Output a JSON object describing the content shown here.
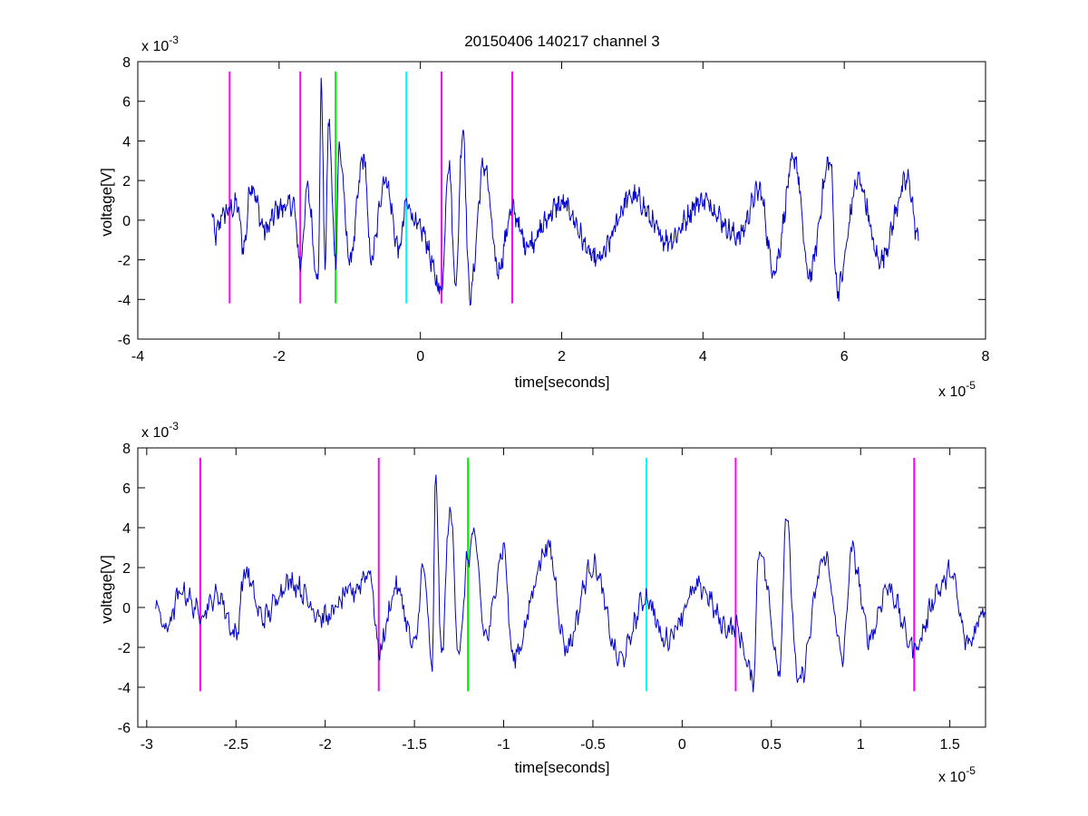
{
  "figure_title": "20150406 140217 channel 3",
  "colors": {
    "signal": "#0000cc",
    "magenta": "#ff00ff",
    "green": "#00ee00",
    "cyan": "#00ffff",
    "axes": "#000000",
    "background": "#ffffff"
  },
  "chart_data": [
    {
      "type": "line",
      "title": "20150406 140217 channel 3",
      "xlabel": "time[seconds]",
      "ylabel": "voltage[V]",
      "x_exponent_label": "x 10",
      "x_exponent": "-5",
      "y_exponent_label": "x 10",
      "y_exponent": "-3",
      "xlim": [
        -4,
        8
      ],
      "ylim": [
        -6,
        8
      ],
      "xticks": [
        -4,
        -2,
        0,
        2,
        4,
        6,
        8
      ],
      "xtick_labels": [
        "-4",
        "-2",
        "0",
        "2",
        "4",
        "6",
        "8"
      ],
      "yticks": [
        -6,
        -4,
        -2,
        0,
        2,
        4,
        6,
        8
      ],
      "ytick_labels": [
        "-6",
        "-4",
        "-2",
        "0",
        "2",
        "4",
        "6",
        "8"
      ],
      "grid": false,
      "signal_x_range": [
        -2.95,
        7.05
      ],
      "waveform_anchors": [
        [
          -2.95,
          0.2
        ],
        [
          -2.9,
          -0.8
        ],
        [
          -2.8,
          0.3
        ],
        [
          -2.7,
          0.5
        ],
        [
          -2.6,
          0.8
        ],
        [
          -2.5,
          -1.4
        ],
        [
          -2.4,
          1.8
        ],
        [
          -2.2,
          -0.5
        ],
        [
          -2.0,
          0.6
        ],
        [
          -1.8,
          0.8
        ],
        [
          -1.7,
          -2.2
        ],
        [
          -1.6,
          1.5
        ],
        [
          -1.45,
          -3.0
        ],
        [
          -1.4,
          6.8
        ],
        [
          -1.35,
          -2.5
        ],
        [
          -1.3,
          4.9
        ],
        [
          -1.2,
          -2.0
        ],
        [
          -1.15,
          3.6
        ],
        [
          -1.0,
          -2.0
        ],
        [
          -0.8,
          3.2
        ],
        [
          -0.7,
          -2.0
        ],
        [
          -0.5,
          2.1
        ],
        [
          -0.3,
          -1.5
        ],
        [
          -0.2,
          0.8
        ],
        [
          0.0,
          -0.5
        ],
        [
          0.3,
          -3.5
        ],
        [
          0.4,
          3.0
        ],
        [
          0.5,
          -3.2
        ],
        [
          0.6,
          4.7
        ],
        [
          0.7,
          -3.8
        ],
        [
          0.9,
          2.8
        ],
        [
          1.1,
          -2.5
        ],
        [
          1.3,
          0.5
        ],
        [
          1.5,
          -1.2
        ],
        [
          2.0,
          0.8
        ],
        [
          2.5,
          -2.0
        ],
        [
          3.0,
          1.2
        ],
        [
          3.5,
          -1.0
        ],
        [
          4.0,
          1.0
        ],
        [
          4.5,
          -0.8
        ],
        [
          4.8,
          1.5
        ],
        [
          5.0,
          -2.5
        ],
        [
          5.3,
          3.1
        ],
        [
          5.5,
          -2.8
        ],
        [
          5.8,
          3.0
        ],
        [
          5.9,
          -3.5
        ],
        [
          6.2,
          2.0
        ],
        [
          6.5,
          -2.0
        ],
        [
          6.9,
          2.0
        ],
        [
          7.05,
          -1.0
        ]
      ],
      "vertical_markers": [
        {
          "x": -2.7,
          "y_range": [
            -4.2,
            7.5
          ],
          "color": "#ff00ff"
        },
        {
          "x": -1.7,
          "y_range": [
            -4.2,
            7.5
          ],
          "color": "#ff00ff"
        },
        {
          "x": -1.2,
          "y_range": [
            -4.2,
            7.5
          ],
          "color": "#00ee00"
        },
        {
          "x": -0.2,
          "y_range": [
            -4.2,
            7.5
          ],
          "color": "#00ffff"
        },
        {
          "x": 0.3,
          "y_range": [
            -4.2,
            7.5
          ],
          "color": "#ff00ff"
        },
        {
          "x": 1.3,
          "y_range": [
            -4.2,
            7.5
          ],
          "color": "#ff00ff"
        }
      ]
    },
    {
      "type": "line",
      "title": "",
      "xlabel": "time[seconds]",
      "ylabel": "voltage[V]",
      "x_exponent_label": "x 10",
      "x_exponent": "-5",
      "y_exponent_label": "x 10",
      "y_exponent": "-3",
      "xlim": [
        -3.05,
        1.7
      ],
      "ylim": [
        -6,
        8
      ],
      "xticks": [
        -3,
        -2.5,
        -2,
        -1.5,
        -1,
        -0.5,
        0,
        0.5,
        1,
        1.5
      ],
      "xtick_labels": [
        "-3",
        "-2.5",
        "-2",
        "-1.5",
        "-1",
        "-0.5",
        "0",
        "0.5",
        "1",
        "1.5"
      ],
      "yticks": [
        -6,
        -4,
        -2,
        0,
        2,
        4,
        6,
        8
      ],
      "ytick_labels": [
        "-6",
        "-4",
        "-2",
        "0",
        "2",
        "4",
        "6",
        "8"
      ],
      "grid": false,
      "signal_x_range": [
        -2.95,
        1.7
      ],
      "waveform_anchors": [
        [
          -2.95,
          0.3
        ],
        [
          -2.9,
          -1.1
        ],
        [
          -2.8,
          0.8
        ],
        [
          -2.7,
          -0.3
        ],
        [
          -2.6,
          0.6
        ],
        [
          -2.5,
          -1.4
        ],
        [
          -2.45,
          1.8
        ],
        [
          -2.35,
          -0.5
        ],
        [
          -2.2,
          1.3
        ],
        [
          -2.0,
          -0.5
        ],
        [
          -1.85,
          0.8
        ],
        [
          -1.75,
          1.8
        ],
        [
          -1.7,
          -2.1
        ],
        [
          -1.6,
          1.0
        ],
        [
          -1.5,
          -2.0
        ],
        [
          -1.45,
          2.0
        ],
        [
          -1.4,
          -3.0
        ],
        [
          -1.38,
          6.8
        ],
        [
          -1.35,
          -2.5
        ],
        [
          -1.3,
          4.9
        ],
        [
          -1.25,
          -2.3
        ],
        [
          -1.2,
          2.5
        ],
        [
          -1.17,
          3.6
        ],
        [
          -1.1,
          -1.5
        ],
        [
          -1.0,
          3.0
        ],
        [
          -0.95,
          -2.5
        ],
        [
          -0.75,
          3.0
        ],
        [
          -0.65,
          -2.0
        ],
        [
          -0.5,
          2.1
        ],
        [
          -0.35,
          -2.6
        ],
        [
          -0.2,
          0.5
        ],
        [
          -0.1,
          -1.6
        ],
        [
          0.1,
          1.0
        ],
        [
          0.25,
          -1.0
        ],
        [
          0.3,
          -1.0
        ],
        [
          0.4,
          -3.6
        ],
        [
          0.43,
          3.0
        ],
        [
          0.55,
          -3.0
        ],
        [
          0.58,
          4.7
        ],
        [
          0.65,
          -3.8
        ],
        [
          0.8,
          2.5
        ],
        [
          0.9,
          -2.5
        ],
        [
          0.95,
          2.8
        ],
        [
          1.05,
          -1.5
        ],
        [
          1.15,
          1.0
        ],
        [
          1.3,
          -2.0
        ],
        [
          1.45,
          1.0
        ],
        [
          1.5,
          1.8
        ],
        [
          1.6,
          -1.8
        ],
        [
          1.7,
          0.0
        ]
      ],
      "vertical_markers": [
        {
          "x": -2.7,
          "y_range": [
            -4.2,
            7.5
          ],
          "color": "#ff00ff"
        },
        {
          "x": -1.7,
          "y_range": [
            -4.2,
            7.5
          ],
          "color": "#ff00ff"
        },
        {
          "x": -1.2,
          "y_range": [
            -4.2,
            7.5
          ],
          "color": "#00ee00"
        },
        {
          "x": -0.2,
          "y_range": [
            -4.2,
            7.5
          ],
          "color": "#00ffff"
        },
        {
          "x": 0.3,
          "y_range": [
            -4.2,
            7.5
          ],
          "color": "#ff00ff"
        },
        {
          "x": 1.3,
          "y_range": [
            -4.2,
            7.5
          ],
          "color": "#ff00ff"
        }
      ]
    }
  ]
}
